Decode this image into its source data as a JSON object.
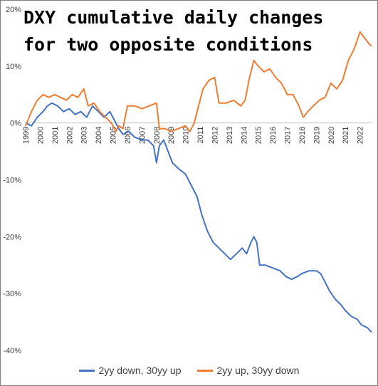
{
  "chart_data": {
    "type": "line",
    "title": "DXY cumulative daily changes for two opposite conditions",
    "xlabel": "",
    "ylabel": "",
    "x_ticks": [
      "1999",
      "2000",
      "2001",
      "2002",
      "2003",
      "2004",
      "2005",
      "2006",
      "2007",
      "2008",
      "2009",
      "2010",
      "2011",
      "2012",
      "2013",
      "2014",
      "2015",
      "2016",
      "2017",
      "2018",
      "2019",
      "2020",
      "2021",
      "2022"
    ],
    "x_range": [
      1999.0,
      2022.8
    ],
    "y_ticks": [
      "20%",
      "10%",
      "0%",
      "-10%",
      "-20%",
      "-30%",
      "-40%"
    ],
    "ylim": [
      -40,
      20
    ],
    "grid": false,
    "legend_position": "bottom",
    "series": [
      {
        "name": "2yy down, 30yy up",
        "color": "#4472C4",
        "points": [
          [
            1999.0,
            0
          ],
          [
            1999.4,
            -0.5
          ],
          [
            1999.8,
            1
          ],
          [
            2000.2,
            2
          ],
          [
            2000.5,
            3
          ],
          [
            2000.8,
            3.5
          ],
          [
            2001.2,
            3
          ],
          [
            2001.6,
            2
          ],
          [
            2002.0,
            2.5
          ],
          [
            2002.4,
            1.5
          ],
          [
            2002.8,
            2
          ],
          [
            2003.2,
            1
          ],
          [
            2003.6,
            3
          ],
          [
            2004.0,
            2
          ],
          [
            2004.4,
            1
          ],
          [
            2004.8,
            2
          ],
          [
            2005.1,
            0.5
          ],
          [
            2005.4,
            -1
          ],
          [
            2005.7,
            -2
          ],
          [
            2006.1,
            -1.5
          ],
          [
            2006.5,
            -2.5
          ],
          [
            2007.0,
            -3
          ],
          [
            2007.4,
            -3
          ],
          [
            2007.8,
            -4
          ],
          [
            2008.0,
            -7
          ],
          [
            2008.2,
            -4
          ],
          [
            2008.5,
            -3
          ],
          [
            2008.8,
            -5
          ],
          [
            2009.1,
            -7
          ],
          [
            2009.5,
            -8
          ],
          [
            2010.0,
            -9
          ],
          [
            2010.4,
            -11
          ],
          [
            2010.8,
            -13
          ],
          [
            2011.1,
            -16
          ],
          [
            2011.5,
            -19
          ],
          [
            2011.9,
            -21
          ],
          [
            2012.3,
            -22
          ],
          [
            2012.7,
            -23
          ],
          [
            2013.1,
            -24
          ],
          [
            2013.5,
            -23
          ],
          [
            2013.9,
            -22
          ],
          [
            2014.2,
            -23
          ],
          [
            2014.5,
            -21
          ],
          [
            2014.7,
            -20
          ],
          [
            2014.9,
            -21
          ],
          [
            2015.1,
            -25
          ],
          [
            2015.5,
            -25
          ],
          [
            2016.0,
            -25.5
          ],
          [
            2016.5,
            -26
          ],
          [
            2016.9,
            -27
          ],
          [
            2017.3,
            -27.5
          ],
          [
            2017.7,
            -27
          ],
          [
            2018.0,
            -26.5
          ],
          [
            2018.5,
            -26
          ],
          [
            2019.0,
            -26
          ],
          [
            2019.3,
            -26.5
          ],
          [
            2019.6,
            -28
          ],
          [
            2019.9,
            -29.5
          ],
          [
            2020.3,
            -31
          ],
          [
            2020.7,
            -32
          ],
          [
            2021.0,
            -33
          ],
          [
            2021.4,
            -34
          ],
          [
            2021.8,
            -34.5
          ],
          [
            2022.1,
            -35.5
          ],
          [
            2022.5,
            -36
          ],
          [
            2022.8,
            -36.8
          ]
        ]
      },
      {
        "name": "2yy up, 30yy down",
        "color": "#ED7D31",
        "points": [
          [
            1999.0,
            -0.5
          ],
          [
            1999.4,
            2
          ],
          [
            1999.8,
            4
          ],
          [
            2000.2,
            5
          ],
          [
            2000.6,
            4.5
          ],
          [
            2001.0,
            5
          ],
          [
            2001.4,
            4.5
          ],
          [
            2001.8,
            4
          ],
          [
            2002.2,
            5
          ],
          [
            2002.6,
            4.5
          ],
          [
            2003.0,
            6
          ],
          [
            2003.3,
            3
          ],
          [
            2003.7,
            3.5
          ],
          [
            2004.1,
            2
          ],
          [
            2004.5,
            1
          ],
          [
            2004.9,
            0
          ],
          [
            2005.2,
            -1.5
          ],
          [
            2005.4,
            -0.5
          ],
          [
            2005.7,
            -1
          ],
          [
            2006.0,
            3
          ],
          [
            2006.5,
            3
          ],
          [
            2007.0,
            2.5
          ],
          [
            2007.5,
            3
          ],
          [
            2008.0,
            3.5
          ],
          [
            2008.2,
            -1
          ],
          [
            2008.6,
            -1
          ],
          [
            2009.0,
            -1.5
          ],
          [
            2009.5,
            -1
          ],
          [
            2010.0,
            -0.5
          ],
          [
            2010.3,
            -1.5
          ],
          [
            2010.6,
            0
          ],
          [
            2010.9,
            3
          ],
          [
            2011.2,
            6
          ],
          [
            2011.6,
            7.5
          ],
          [
            2012.0,
            8
          ],
          [
            2012.3,
            3.5
          ],
          [
            2012.8,
            3.5
          ],
          [
            2013.3,
            4
          ],
          [
            2013.8,
            3
          ],
          [
            2014.1,
            4
          ],
          [
            2014.4,
            8
          ],
          [
            2014.7,
            11
          ],
          [
            2015.0,
            10
          ],
          [
            2015.4,
            9
          ],
          [
            2015.8,
            9.5
          ],
          [
            2016.2,
            8
          ],
          [
            2016.6,
            7
          ],
          [
            2017.0,
            5
          ],
          [
            2017.4,
            5
          ],
          [
            2017.8,
            3
          ],
          [
            2018.1,
            1
          ],
          [
            2018.4,
            2
          ],
          [
            2018.8,
            3
          ],
          [
            2019.2,
            4
          ],
          [
            2019.6,
            4.5
          ],
          [
            2020.0,
            7
          ],
          [
            2020.4,
            6
          ],
          [
            2020.8,
            7.5
          ],
          [
            2021.2,
            11
          ],
          [
            2021.6,
            13
          ],
          [
            2022.0,
            16
          ],
          [
            2022.3,
            15
          ],
          [
            2022.6,
            14
          ],
          [
            2022.8,
            13.5
          ]
        ]
      }
    ]
  }
}
